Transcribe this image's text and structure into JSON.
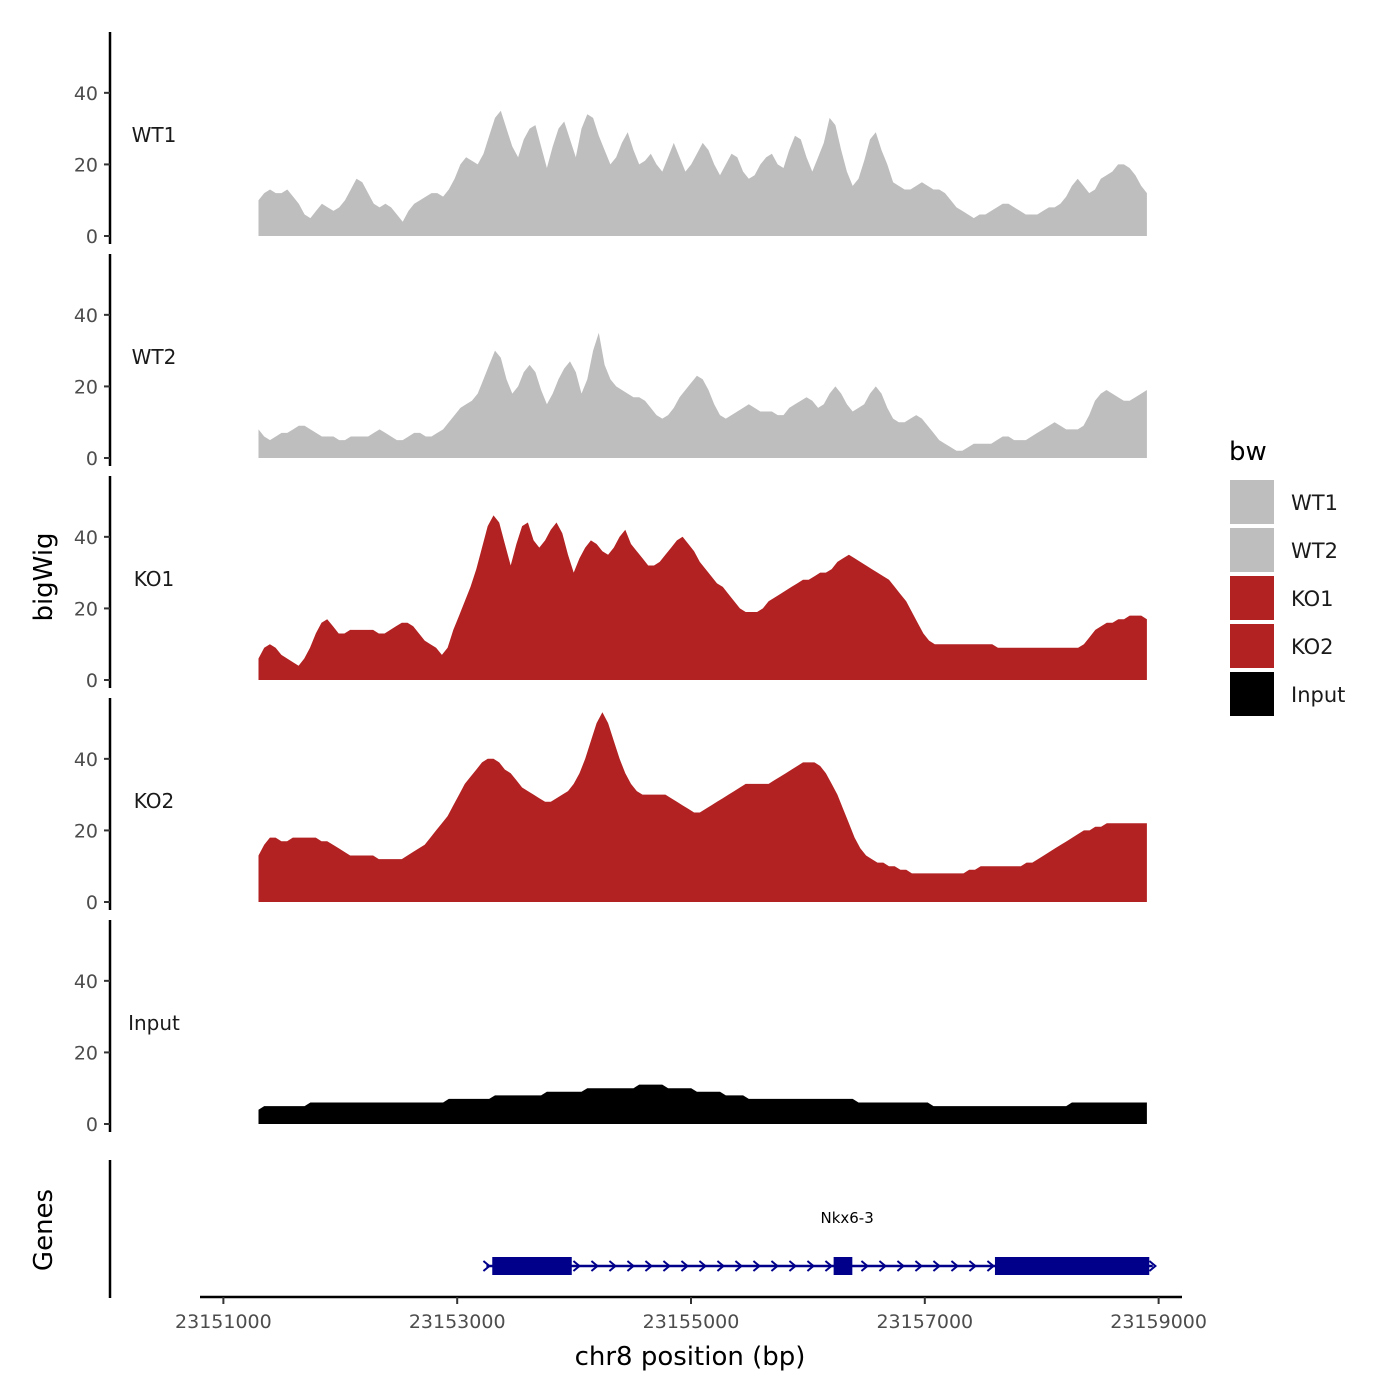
{
  "chart_data": {
    "type": "area",
    "ylabel": "bigWig",
    "xlabel": "chr8 position (bp)",
    "genes_label": "Genes",
    "xlim": [
      23150800,
      23159200
    ],
    "data_range": [
      23151300,
      23158900
    ],
    "x_ticks": [
      23151000,
      23153000,
      23155000,
      23157000,
      23159000
    ],
    "ylim": [
      0,
      57
    ],
    "y_ticks": [
      0,
      20,
      40
    ],
    "series": [
      {
        "name": "WT1",
        "color": "#bebebe",
        "values": [
          10,
          12,
          13,
          12,
          12,
          13,
          11,
          9,
          6,
          5,
          7,
          9,
          8,
          7,
          8,
          10,
          13,
          16,
          15,
          12,
          9,
          8,
          9,
          8,
          6,
          4,
          7,
          9,
          10,
          11,
          12,
          12,
          11,
          13,
          16,
          20,
          22,
          21,
          20,
          23,
          28,
          33,
          35,
          30,
          25,
          22,
          27,
          30,
          31,
          25,
          19,
          25,
          30,
          32,
          27,
          22,
          30,
          34,
          33,
          28,
          24,
          20,
          22,
          26,
          29,
          24,
          20,
          21,
          23,
          20,
          18,
          22,
          26,
          22,
          18,
          20,
          23,
          26,
          24,
          20,
          17,
          20,
          23,
          22,
          18,
          16,
          17,
          20,
          22,
          23,
          20,
          19,
          24,
          28,
          27,
          22,
          18,
          22,
          26,
          33,
          31,
          24,
          18,
          14,
          16,
          21,
          27,
          29,
          24,
          20,
          15,
          14,
          13,
          13,
          14,
          15,
          14,
          13,
          13,
          12,
          10,
          8,
          7,
          6,
          5,
          6,
          6,
          7,
          8,
          9,
          9,
          8,
          7,
          6,
          6,
          6,
          7,
          8,
          8,
          9,
          11,
          14,
          16,
          14,
          12,
          13,
          16,
          17,
          18,
          20,
          20,
          19,
          17,
          14,
          12
        ]
      },
      {
        "name": "WT2",
        "color": "#bebebe",
        "values": [
          8,
          6,
          5,
          6,
          7,
          7,
          8,
          9,
          9,
          8,
          7,
          6,
          6,
          6,
          5,
          5,
          6,
          6,
          6,
          6,
          7,
          8,
          7,
          6,
          5,
          5,
          6,
          7,
          7,
          6,
          6,
          7,
          8,
          10,
          12,
          14,
          15,
          16,
          18,
          22,
          26,
          30,
          28,
          22,
          18,
          20,
          24,
          26,
          24,
          19,
          15,
          18,
          22,
          25,
          27,
          24,
          18,
          22,
          30,
          35,
          26,
          22,
          20,
          19,
          18,
          17,
          17,
          16,
          14,
          12,
          11,
          12,
          14,
          17,
          19,
          21,
          23,
          22,
          19,
          15,
          12,
          11,
          12,
          13,
          14,
          15,
          14,
          13,
          13,
          13,
          12,
          12,
          14,
          15,
          16,
          17,
          16,
          14,
          15,
          18,
          20,
          18,
          15,
          13,
          14,
          15,
          18,
          20,
          18,
          14,
          11,
          10,
          10,
          11,
          12,
          11,
          9,
          7,
          5,
          4,
          3,
          2,
          2,
          3,
          4,
          4,
          4,
          4,
          5,
          6,
          6,
          5,
          5,
          5,
          6,
          7,
          8,
          9,
          10,
          9,
          8,
          8,
          8,
          9,
          12,
          16,
          18,
          19,
          18,
          17,
          16,
          16,
          17,
          18,
          19
        ]
      },
      {
        "name": "KO1",
        "color": "#b22222",
        "values": [
          6,
          9,
          10,
          9,
          7,
          6,
          5,
          4,
          6,
          9,
          13,
          16,
          17,
          15,
          13,
          13,
          14,
          14,
          14,
          14,
          14,
          13,
          13,
          14,
          15,
          16,
          16,
          15,
          13,
          11,
          10,
          9,
          7,
          9,
          14,
          18,
          22,
          26,
          31,
          37,
          43,
          46,
          44,
          38,
          32,
          38,
          43,
          44,
          39,
          37,
          39,
          42,
          44,
          41,
          35,
          30,
          34,
          37,
          39,
          38,
          36,
          35,
          37,
          40,
          42,
          38,
          36,
          34,
          32,
          32,
          33,
          35,
          37,
          39,
          40,
          38,
          36,
          33,
          31,
          29,
          27,
          26,
          24,
          22,
          20,
          19,
          19,
          19,
          20,
          22,
          23,
          24,
          25,
          26,
          27,
          28,
          28,
          29,
          30,
          30,
          31,
          33,
          34,
          35,
          34,
          33,
          32,
          31,
          30,
          29,
          28,
          26,
          24,
          22,
          19,
          16,
          13,
          11,
          10,
          10,
          10,
          10,
          10,
          10,
          10,
          10,
          10,
          10,
          10,
          9,
          9,
          9,
          9,
          9,
          9,
          9,
          9,
          9,
          9,
          9,
          9,
          9,
          9,
          9,
          10,
          12,
          14,
          15,
          16,
          16,
          17,
          17,
          18,
          18,
          18,
          17
        ]
      },
      {
        "name": "KO2",
        "color": "#b22222",
        "values": [
          13,
          16,
          18,
          18,
          17,
          17,
          18,
          18,
          18,
          18,
          18,
          17,
          17,
          16,
          15,
          14,
          13,
          13,
          13,
          13,
          13,
          12,
          12,
          12,
          12,
          12,
          13,
          14,
          15,
          16,
          18,
          20,
          22,
          24,
          27,
          30,
          33,
          35,
          37,
          39,
          40,
          40,
          39,
          37,
          36,
          34,
          32,
          31,
          30,
          29,
          28,
          28,
          29,
          30,
          31,
          33,
          36,
          40,
          45,
          50,
          53,
          50,
          45,
          40,
          36,
          33,
          31,
          30,
          30,
          30,
          30,
          30,
          29,
          28,
          27,
          26,
          25,
          25,
          26,
          27,
          28,
          29,
          30,
          31,
          32,
          33,
          33,
          33,
          33,
          33,
          34,
          35,
          36,
          37,
          38,
          39,
          39,
          39,
          38,
          36,
          33,
          30,
          26,
          22,
          18,
          15,
          13,
          12,
          11,
          11,
          10,
          10,
          9,
          9,
          8,
          8,
          8,
          8,
          8,
          8,
          8,
          8,
          8,
          8,
          9,
          9,
          10,
          10,
          10,
          10,
          10,
          10,
          10,
          10,
          11,
          11,
          12,
          13,
          14,
          15,
          16,
          17,
          18,
          19,
          20,
          20,
          21,
          21,
          22,
          22,
          22,
          22,
          22,
          22,
          22,
          22
        ]
      },
      {
        "name": "Input",
        "color": "#000000",
        "values": [
          4,
          5,
          5,
          5,
          5,
          5,
          5,
          5,
          5,
          6,
          6,
          6,
          6,
          6,
          6,
          6,
          6,
          6,
          6,
          6,
          6,
          6,
          6,
          6,
          6,
          6,
          6,
          6,
          6,
          6,
          6,
          6,
          6,
          7,
          7,
          7,
          7,
          7,
          7,
          7,
          7,
          8,
          8,
          8,
          8,
          8,
          8,
          8,
          8,
          8,
          9,
          9,
          9,
          9,
          9,
          9,
          9,
          10,
          10,
          10,
          10,
          10,
          10,
          10,
          10,
          10,
          11,
          11,
          11,
          11,
          11,
          10,
          10,
          10,
          10,
          10,
          9,
          9,
          9,
          9,
          9,
          8,
          8,
          8,
          8,
          7,
          7,
          7,
          7,
          7,
          7,
          7,
          7,
          7,
          7,
          7,
          7,
          7,
          7,
          7,
          7,
          7,
          7,
          7,
          6,
          6,
          6,
          6,
          6,
          6,
          6,
          6,
          6,
          6,
          6,
          6,
          6,
          5,
          5,
          5,
          5,
          5,
          5,
          5,
          5,
          5,
          5,
          5,
          5,
          5,
          5,
          5,
          5,
          5,
          5,
          5,
          5,
          5,
          5,
          5,
          5,
          6,
          6,
          6,
          6,
          6,
          6,
          6,
          6,
          6,
          6,
          6,
          6,
          6,
          6
        ]
      }
    ],
    "legend": {
      "title": "bw",
      "position": "right",
      "entries": [
        {
          "label": "WT1",
          "color": "#bebebe"
        },
        {
          "label": "WT2",
          "color": "#bebebe"
        },
        {
          "label": "KO1",
          "color": "#b22222"
        },
        {
          "label": "KO2",
          "color": "#b22222"
        },
        {
          "label": "Input",
          "color": "#000000"
        }
      ]
    },
    "gene": {
      "name": "Nkx6-3",
      "color": "#00008b",
      "strand": "+",
      "start": 23153250,
      "end": 23158950,
      "exons": [
        {
          "start": 23153300,
          "end": 23153980
        },
        {
          "start": 23156220,
          "end": 23156380
        },
        {
          "start": 23157600,
          "end": 23158920
        }
      ]
    }
  }
}
